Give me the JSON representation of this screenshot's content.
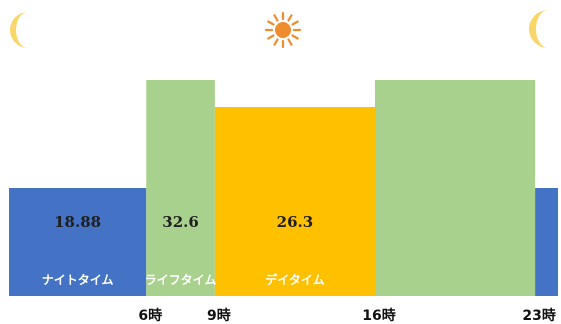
{
  "chart_data": {
    "type": "bar",
    "title": "",
    "xlabel": "",
    "ylabel": "",
    "x_range": [
      0,
      24
    ],
    "segments": [
      {
        "start": 0,
        "end": 6,
        "level": 1,
        "color": "#4472C4",
        "value_label": "18.88",
        "name": "ナイトタイム"
      },
      {
        "start": 6,
        "end": 9,
        "level": 2,
        "color": "#A9D18E",
        "value_label": "32.6",
        "name": "ライフタイム"
      },
      {
        "start": 9,
        "end": 16,
        "level": 1.75,
        "color": "#FFC000",
        "value_label": "26.3",
        "name": "デイタイム"
      },
      {
        "start": 16,
        "end": 23,
        "level": 2,
        "color": "#A9D18E",
        "value_label": "",
        "name": ""
      },
      {
        "start": 23,
        "end": 24,
        "level": 1,
        "color": "#4472C4",
        "value_label": "",
        "name": ""
      }
    ],
    "ticks": [
      {
        "x": 6,
        "label": "6時"
      },
      {
        "x": 9,
        "label": "9時"
      },
      {
        "x": 16,
        "label": "16時"
      },
      {
        "x": 23,
        "label": "23時"
      }
    ],
    "icons": [
      "crescent-moon-icon",
      "sun-icon",
      "crescent-moon-icon"
    ],
    "colors": {
      "moon": "#F8D66A",
      "sun": "#EF8C2E"
    }
  }
}
